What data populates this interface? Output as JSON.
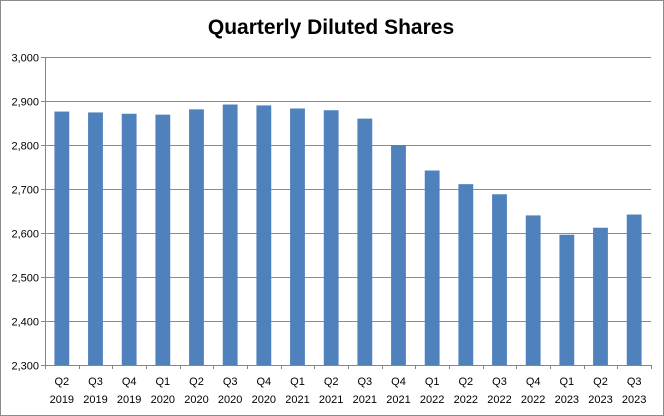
{
  "chart_data": {
    "type": "bar",
    "title": "Quarterly Diluted Shares",
    "xlabel": "",
    "ylabel": "",
    "categories": [
      [
        "Q2",
        "2019"
      ],
      [
        "Q3",
        "2019"
      ],
      [
        "Q4",
        "2019"
      ],
      [
        "Q1",
        "2020"
      ],
      [
        "Q2",
        "2020"
      ],
      [
        "Q3",
        "2020"
      ],
      [
        "Q4",
        "2020"
      ],
      [
        "Q1",
        "2021"
      ],
      [
        "Q2",
        "2021"
      ],
      [
        "Q3",
        "2021"
      ],
      [
        "Q4",
        "2021"
      ],
      [
        "Q1",
        "2022"
      ],
      [
        "Q2",
        "2022"
      ],
      [
        "Q3",
        "2022"
      ],
      [
        "Q4",
        "2022"
      ],
      [
        "Q1",
        "2023"
      ],
      [
        "Q2",
        "2023"
      ],
      [
        "Q3",
        "2023"
      ]
    ],
    "values": [
      2876,
      2874,
      2871,
      2869,
      2881,
      2892,
      2890,
      2883,
      2879,
      2860,
      2800,
      2742,
      2711,
      2688,
      2640,
      2596,
      2612,
      2642
    ],
    "ylim": [
      2300,
      3000
    ],
    "yticks": [
      2300,
      2400,
      2500,
      2600,
      2700,
      2800,
      2900,
      3000
    ],
    "ytick_labels": [
      "2,300",
      "2,400",
      "2,500",
      "2,600",
      "2,700",
      "2,800",
      "2,900",
      "3,000"
    ],
    "grid": true,
    "legend": "none",
    "colors": {
      "bar": "#4f81bd",
      "grid": "#8c8c8c",
      "axis": "#868686"
    }
  }
}
